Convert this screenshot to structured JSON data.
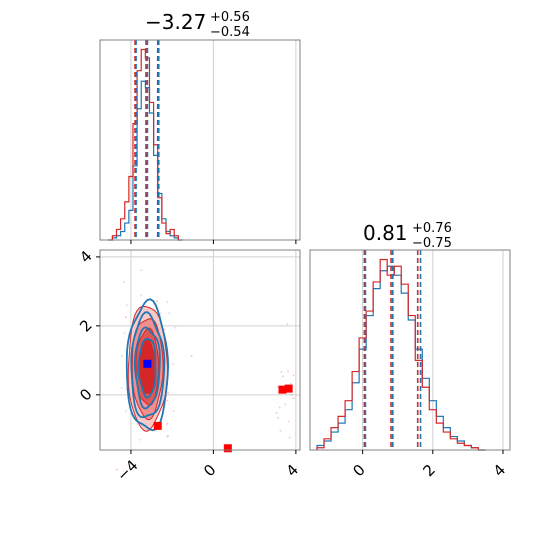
{
  "chart_data": [
    {
      "type": "histogram",
      "panel": "marginal-x",
      "title": {
        "value": "−3.27",
        "upper": "+0.56",
        "lower": "−0.54"
      },
      "x_range": [
        -5.5,
        4.2
      ],
      "grid": true,
      "series": [
        {
          "name": "",
          "color": "#1f77b4",
          "x": [
            -5.0,
            -4.8,
            -4.6,
            -4.4,
            -4.2,
            -4.0,
            -3.8,
            -3.6,
            -3.4,
            -3.2,
            -3.0,
            -2.8,
            -2.6,
            -2.4,
            -2.2,
            -2.0,
            -1.8,
            -1.6
          ],
          "values": [
            0,
            1,
            2,
            4,
            8,
            14,
            35,
            62,
            75,
            72,
            60,
            40,
            22,
            10,
            4,
            2,
            1,
            0
          ]
        },
        {
          "name": "",
          "color": "#d62728",
          "x": [
            -5.0,
            -4.8,
            -4.6,
            -4.4,
            -4.2,
            -4.0,
            -3.8,
            -3.6,
            -3.4,
            -3.2,
            -3.0,
            -2.8,
            -2.6,
            -2.4,
            -2.2,
            -2.0,
            -1.8,
            -1.6
          ],
          "values": [
            0,
            2,
            5,
            10,
            18,
            30,
            55,
            80,
            90,
            86,
            65,
            45,
            20,
            8,
            3,
            5,
            2,
            0
          ]
        }
      ],
      "quantile_lines": [
        {
          "color": "#d62728",
          "x": [
            -3.8,
            -3.27,
            -2.7
          ]
        },
        {
          "color": "#1f77b4",
          "x": [
            -3.75,
            -3.2,
            -2.65
          ]
        }
      ]
    },
    {
      "type": "scatter",
      "panel": "joint",
      "x_range": [
        -5.5,
        4.2
      ],
      "y_range": [
        -1.6,
        4.2
      ],
      "grid": true,
      "contour_center": [
        -3.2,
        0.8
      ],
      "blue_marker": {
        "x": -3.2,
        "y": 0.9,
        "color": "#0000ff"
      },
      "red_markers": [
        {
          "x": -2.7,
          "y": -0.9
        },
        {
          "x": 0.7,
          "y": -1.55
        },
        {
          "x": 3.35,
          "y": 0.15
        },
        {
          "x": 3.65,
          "y": 0.18
        }
      ]
    },
    {
      "type": "histogram",
      "panel": "marginal-y",
      "title": {
        "value": "0.81",
        "upper": "+0.76",
        "lower": "−0.75"
      },
      "x_range": [
        -1.5,
        4.2
      ],
      "grid": true,
      "series": [
        {
          "name": "",
          "color": "#1f77b4",
          "x": [
            -1.2,
            -1.0,
            -0.8,
            -0.6,
            -0.4,
            -0.2,
            0.0,
            0.2,
            0.4,
            0.6,
            0.8,
            1.0,
            1.2,
            1.4,
            1.6,
            1.8,
            2.0,
            2.2,
            2.4,
            2.6,
            2.8,
            3.0,
            3.2,
            3.4
          ],
          "values": [
            2,
            4,
            8,
            12,
            18,
            30,
            45,
            60,
            72,
            80,
            82,
            78,
            70,
            58,
            45,
            32,
            22,
            15,
            10,
            6,
            4,
            2,
            1,
            0
          ]
        },
        {
          "name": "",
          "color": "#d62728",
          "x": [
            -1.2,
            -1.0,
            -0.8,
            -0.6,
            -0.4,
            -0.2,
            0.0,
            0.2,
            0.4,
            0.6,
            0.8,
            1.0,
            1.2,
            1.4,
            1.6,
            1.8,
            2.0,
            2.2,
            2.4,
            2.6,
            2.8,
            3.0,
            3.2,
            3.4
          ],
          "values": [
            1,
            5,
            10,
            15,
            22,
            35,
            50,
            62,
            75,
            85,
            78,
            82,
            74,
            60,
            40,
            28,
            18,
            12,
            8,
            5,
            3,
            2,
            1,
            0
          ]
        }
      ],
      "quantile_lines": [
        {
          "color": "#d62728",
          "x": [
            0.05,
            0.81,
            1.57
          ]
        },
        {
          "color": "#1f77b4",
          "x": [
            0.08,
            0.86,
            1.65
          ]
        }
      ]
    }
  ],
  "axes": {
    "x_ticks": [
      "−4",
      "0",
      "4"
    ],
    "y_ticks": [
      "0",
      "2",
      "4"
    ],
    "x_tick_values": [
      -4,
      0,
      4
    ],
    "y_tick_values": [
      0,
      2,
      4
    ]
  }
}
